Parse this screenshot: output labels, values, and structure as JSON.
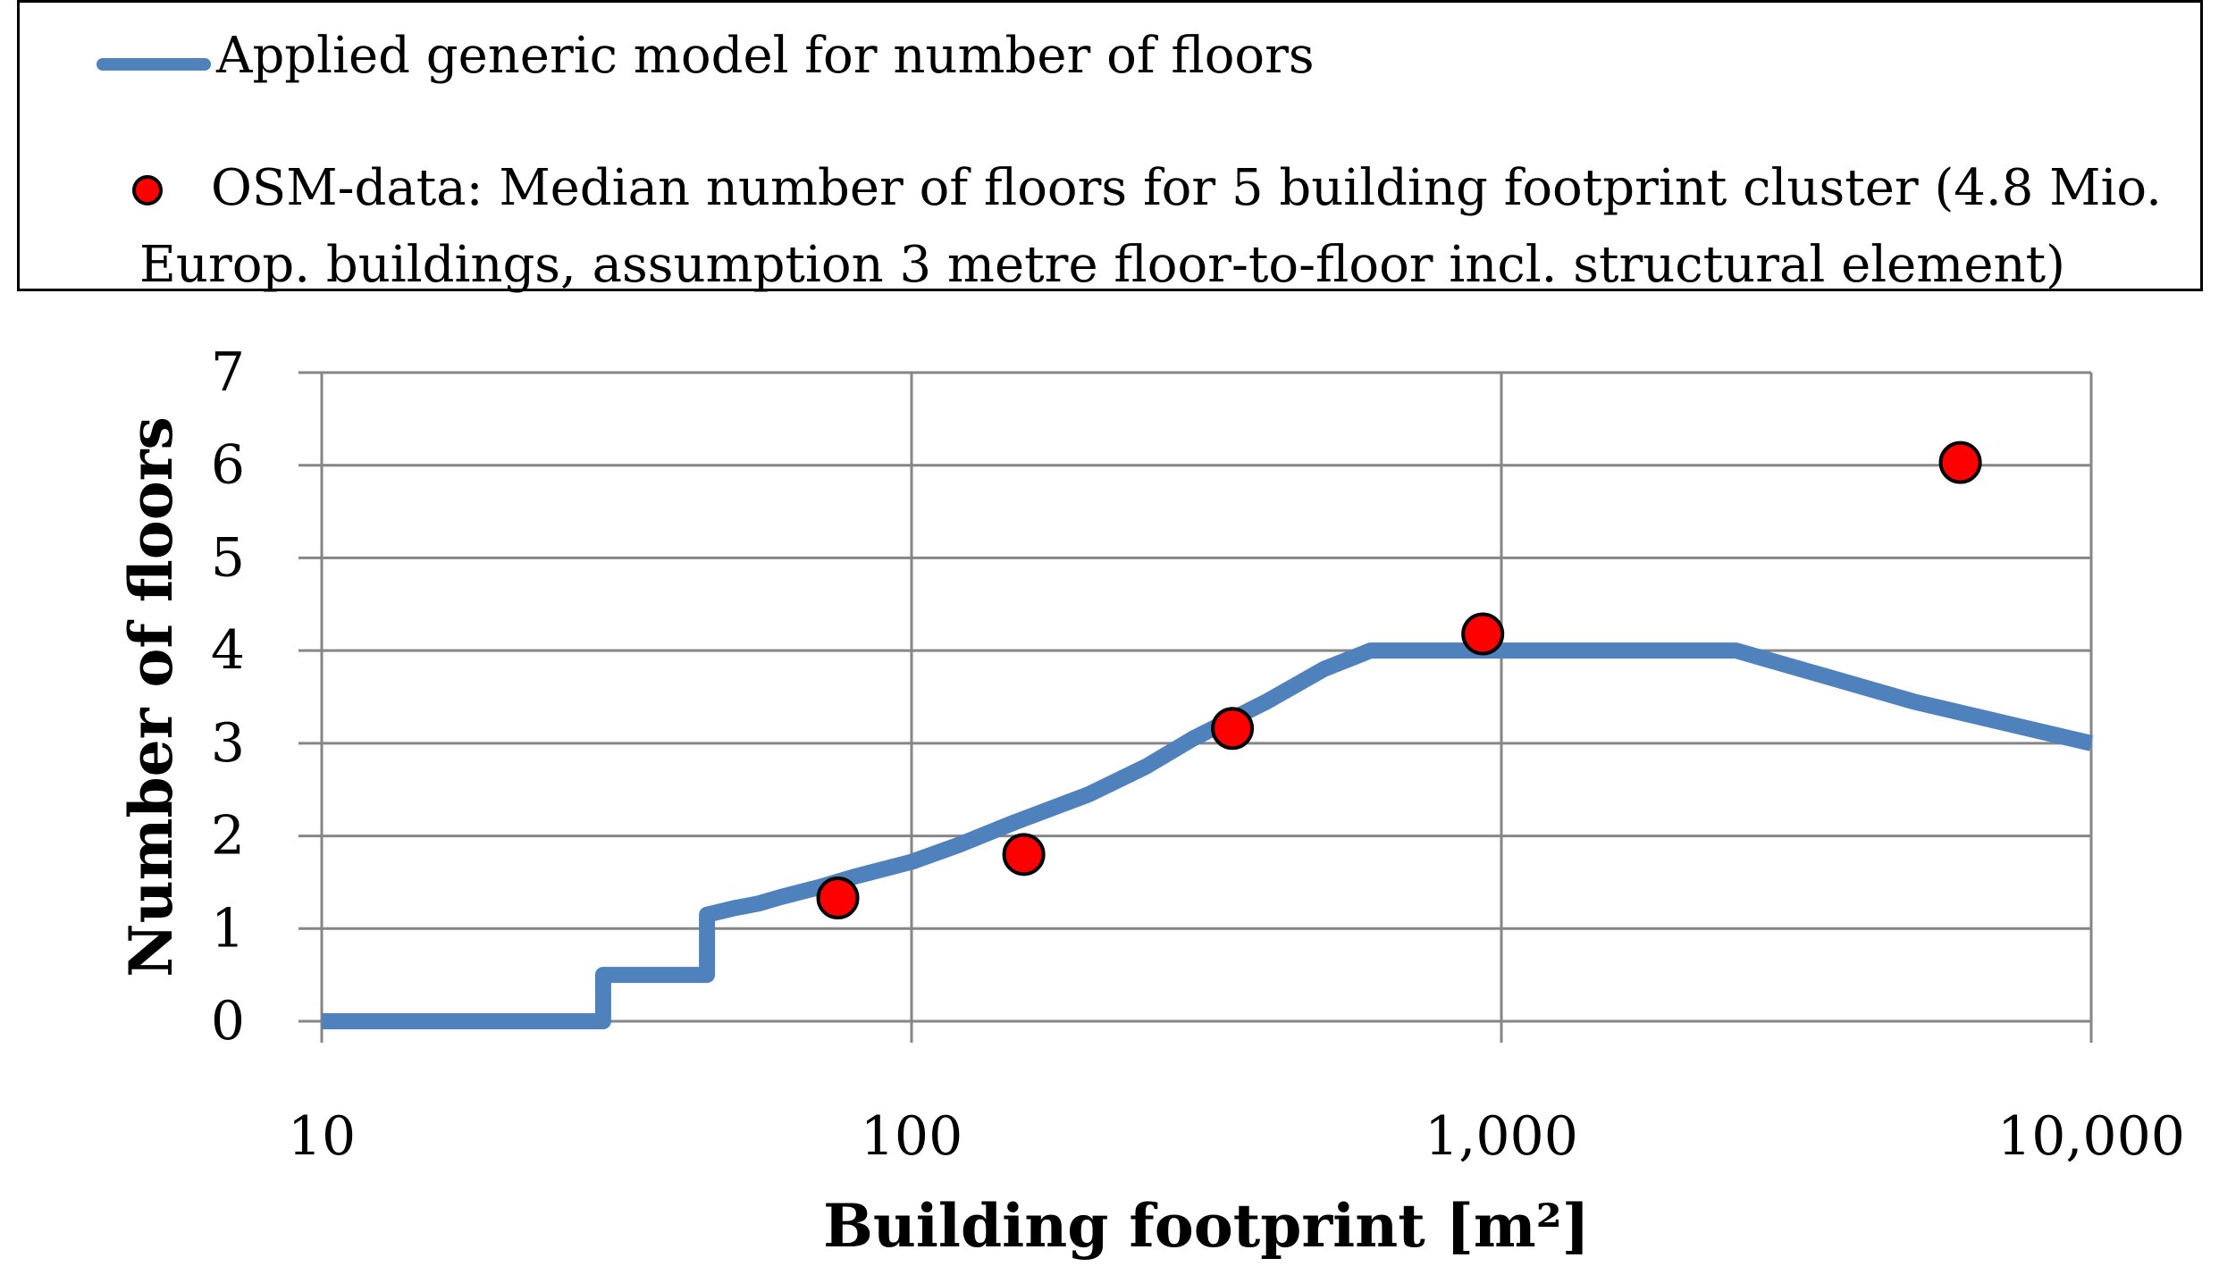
{
  "chart_data": {
    "type": "line",
    "xlabel": "Building footprint [m²]",
    "ylabel": "Number of floors",
    "x_scale": "log",
    "xlim": [
      10,
      10000
    ],
    "ylim": [
      0,
      7
    ],
    "grid": true,
    "legend_position": "top",
    "x_ticks": [
      {
        "value": 10,
        "label": "10"
      },
      {
        "value": 100,
        "label": "100"
      },
      {
        "value": 1000,
        "label": "1,000"
      },
      {
        "value": 10000,
        "label": "10,000"
      }
    ],
    "y_ticks": [
      {
        "value": 0,
        "label": "0"
      },
      {
        "value": 1,
        "label": "1"
      },
      {
        "value": 2,
        "label": "2"
      },
      {
        "value": 3,
        "label": "3"
      },
      {
        "value": 4,
        "label": "4"
      },
      {
        "value": 5,
        "label": "5"
      },
      {
        "value": 6,
        "label": "6"
      },
      {
        "value": 7,
        "label": "7"
      }
    ],
    "series": [
      {
        "name": "Applied generic model for number of floors",
        "kind": "line",
        "color": "#4f81bd",
        "points": [
          [
            10,
            0
          ],
          [
            30,
            0
          ],
          [
            30,
            0.5
          ],
          [
            45,
            0.5
          ],
          [
            45,
            1.15
          ],
          [
            50,
            1.22
          ],
          [
            55,
            1.27
          ],
          [
            60,
            1.34
          ],
          [
            70,
            1.45
          ],
          [
            80,
            1.56
          ],
          [
            100,
            1.72
          ],
          [
            120,
            1.9
          ],
          [
            150,
            2.15
          ],
          [
            200,
            2.45
          ],
          [
            250,
            2.75
          ],
          [
            300,
            3.05
          ],
          [
            400,
            3.45
          ],
          [
            500,
            3.8
          ],
          [
            600,
            4.0
          ],
          [
            1000,
            4.0
          ],
          [
            2000,
            4.0
          ],
          [
            2500,
            4.0
          ],
          [
            5000,
            3.45
          ],
          [
            10000,
            3.0
          ]
        ]
      },
      {
        "name": "OSM-data: Median number of floors for 5 building footprint cluster (4.8 Mio. Europ. buildings, assumption 3 metre floor-to-floor incl. structural element)",
        "kind": "scatter",
        "color": "#ff0000",
        "points": [
          [
            75,
            1.33
          ],
          [
            155,
            1.8
          ],
          [
            350,
            3.16
          ],
          [
            930,
            4.18
          ],
          [
            6000,
            6.03
          ]
        ]
      }
    ]
  },
  "legend": {
    "line_label": "Applied generic model for number of floors",
    "dots_label_line1": "OSM-data: Median number of floors for 5 building footprint cluster (4.8 Mio.",
    "dots_label_line2": "Europ. buildings, assumption 3 metre floor-to-floor incl. structural element)"
  }
}
